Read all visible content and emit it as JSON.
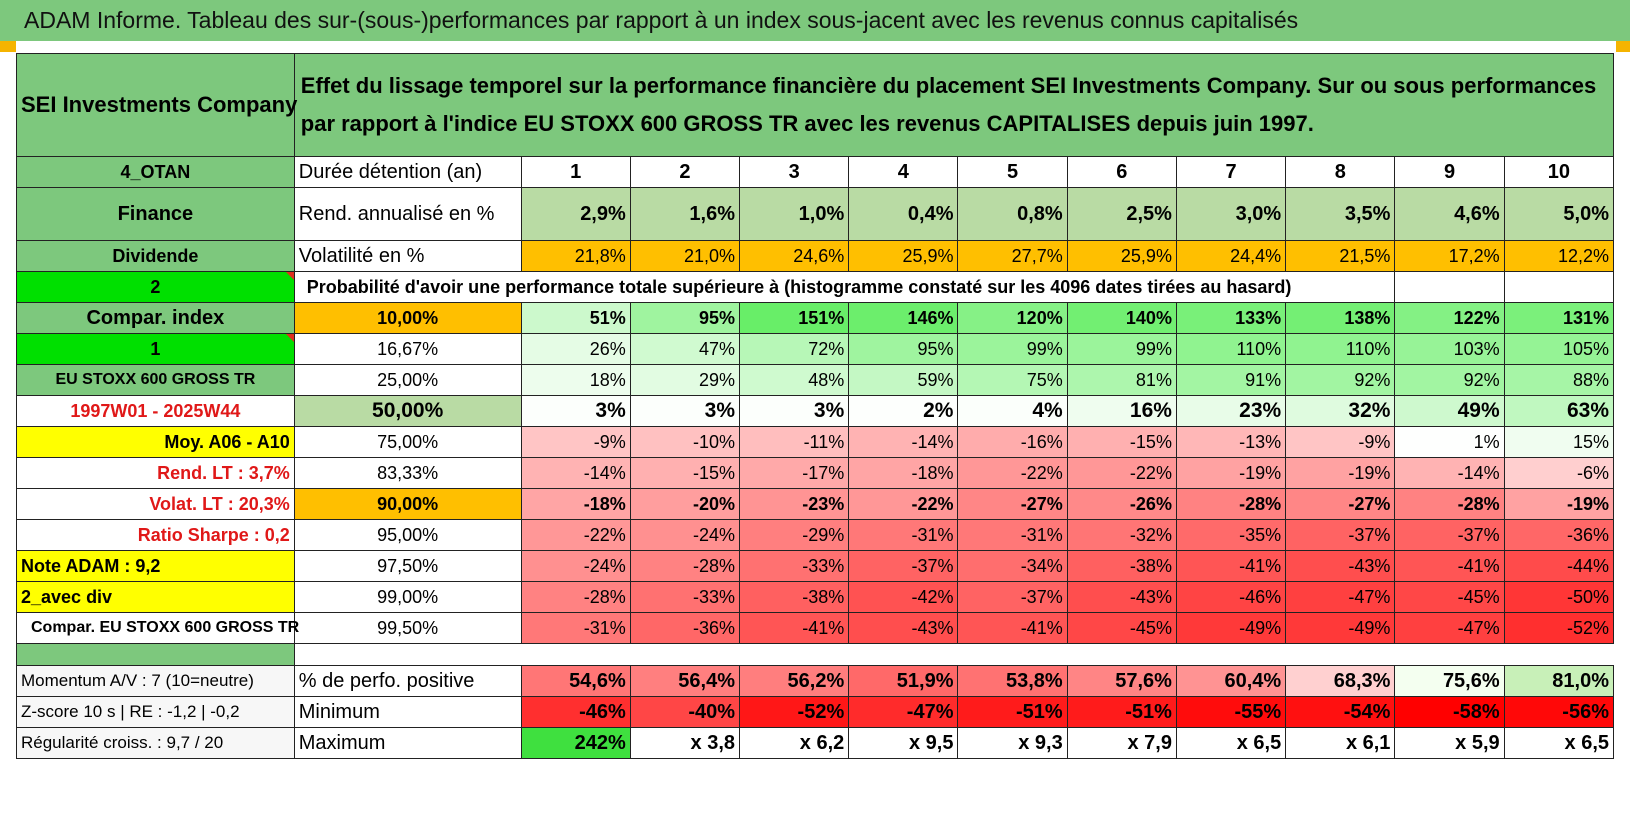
{
  "title": "ADAM Informe. Tableau des sur-(sous-)performances par rapport à un index sous-jacent avec les revenus connus capitalisés",
  "company": "SEI Investments Company",
  "description": "Effet du lissage temporel sur la performance financière du placement SEI Investments Company. Sur ou sous performances par rapport à l'indice EU STOXX 600 GROSS TR avec les revenus CAPITALISES depuis juin 1997.",
  "left": {
    "otan": "4_OTAN",
    "finance": "Finance",
    "dividende": "Dividende",
    "two": "2",
    "compar_index": "Compar. index",
    "one": "1",
    "index_name": "EU STOXX 600 GROSS TR",
    "period": "1997W01 - 2025W44",
    "moy": "Moy. A06 - A10",
    "rend_lt": "Rend. LT :   3,7%",
    "volat_lt": "Volat. LT :   20,3%",
    "sharpe": "Ratio Sharpe :   0,2",
    "note": "Note ADAM : 9,2",
    "avec_div": "2_avec div",
    "compar_full": "Compar. EU STOXX 600 GROSS TR",
    "momentum": "Momentum A/V : 7 (10=neutre)",
    "zscore": "Z-score 10 s | RE : -1,2 | -0,2",
    "regularite": "Régularité croiss. : 9,7 / 20"
  },
  "labels": {
    "duree": "Durée détention (an)",
    "rend": "Rend. annualisé en %",
    "volat": "Volatilité en %",
    "proba": "Probabilité d'avoir une performance totale supérieure à (histogramme constaté sur les 4096 dates tirées au hasard)",
    "perf_pos": "% de perfo. positive",
    "minimum": "Minimum",
    "maximum": "Maximum"
  },
  "years": [
    "1",
    "2",
    "3",
    "4",
    "5",
    "6",
    "7",
    "8",
    "9",
    "10"
  ],
  "rend": [
    "2,9%",
    "1,6%",
    "1,0%",
    "0,4%",
    "0,8%",
    "2,5%",
    "3,0%",
    "3,5%",
    "4,6%",
    "5,0%"
  ],
  "volat": [
    "21,8%",
    "21,0%",
    "24,6%",
    "25,9%",
    "27,7%",
    "25,9%",
    "24,4%",
    "21,5%",
    "17,2%",
    "12,2%"
  ],
  "quantiles": [
    {
      "q": "10,00%",
      "vals": [
        "51%",
        "95%",
        "151%",
        "146%",
        "120%",
        "140%",
        "133%",
        "138%",
        "122%",
        "131%"
      ]
    },
    {
      "q": "16,67%",
      "vals": [
        "26%",
        "47%",
        "72%",
        "95%",
        "99%",
        "99%",
        "110%",
        "110%",
        "103%",
        "105%"
      ]
    },
    {
      "q": "25,00%",
      "vals": [
        "18%",
        "29%",
        "48%",
        "59%",
        "75%",
        "81%",
        "91%",
        "92%",
        "92%",
        "88%"
      ]
    },
    {
      "q": "50,00%",
      "vals": [
        "3%",
        "3%",
        "3%",
        "2%",
        "4%",
        "16%",
        "23%",
        "32%",
        "49%",
        "63%"
      ]
    },
    {
      "q": "75,00%",
      "vals": [
        "-9%",
        "-10%",
        "-11%",
        "-14%",
        "-16%",
        "-15%",
        "-13%",
        "-9%",
        "1%",
        "15%"
      ]
    },
    {
      "q": "83,33%",
      "vals": [
        "-14%",
        "-15%",
        "-17%",
        "-18%",
        "-22%",
        "-22%",
        "-19%",
        "-19%",
        "-14%",
        "-6%"
      ]
    },
    {
      "q": "90,00%",
      "vals": [
        "-18%",
        "-20%",
        "-23%",
        "-22%",
        "-27%",
        "-26%",
        "-28%",
        "-27%",
        "-28%",
        "-19%"
      ]
    },
    {
      "q": "95,00%",
      "vals": [
        "-22%",
        "-24%",
        "-29%",
        "-31%",
        "-31%",
        "-32%",
        "-35%",
        "-37%",
        "-37%",
        "-36%"
      ]
    },
    {
      "q": "97,50%",
      "vals": [
        "-24%",
        "-28%",
        "-33%",
        "-37%",
        "-34%",
        "-38%",
        "-41%",
        "-43%",
        "-41%",
        "-44%"
      ]
    },
    {
      "q": "99,00%",
      "vals": [
        "-28%",
        "-33%",
        "-38%",
        "-42%",
        "-37%",
        "-43%",
        "-46%",
        "-47%",
        "-45%",
        "-50%"
      ]
    },
    {
      "q": "99,50%",
      "vals": [
        "-31%",
        "-36%",
        "-41%",
        "-43%",
        "-41%",
        "-45%",
        "-49%",
        "-49%",
        "-47%",
        "-52%"
      ]
    }
  ],
  "perf_pos": [
    "54,6%",
    "56,4%",
    "56,2%",
    "51,9%",
    "53,8%",
    "57,6%",
    "60,4%",
    "68,3%",
    "75,6%",
    "81,0%"
  ],
  "minimum": [
    "-46%",
    "-40%",
    "-52%",
    "-47%",
    "-51%",
    "-51%",
    "-55%",
    "-54%",
    "-58%",
    "-56%"
  ],
  "maximum": [
    "242%",
    "x 3,8",
    "x 6,2",
    "x 9,5",
    "x 9,3",
    "x 7,9",
    "x 6,5",
    "x 6,1",
    "x 5,9",
    "x 6,5"
  ],
  "colors": {
    "header_green": "#7dc87d",
    "bright_green": "#00e000",
    "orange": "#ffbf00",
    "yellow": "#ffff00",
    "label_red": "#e01818"
  }
}
